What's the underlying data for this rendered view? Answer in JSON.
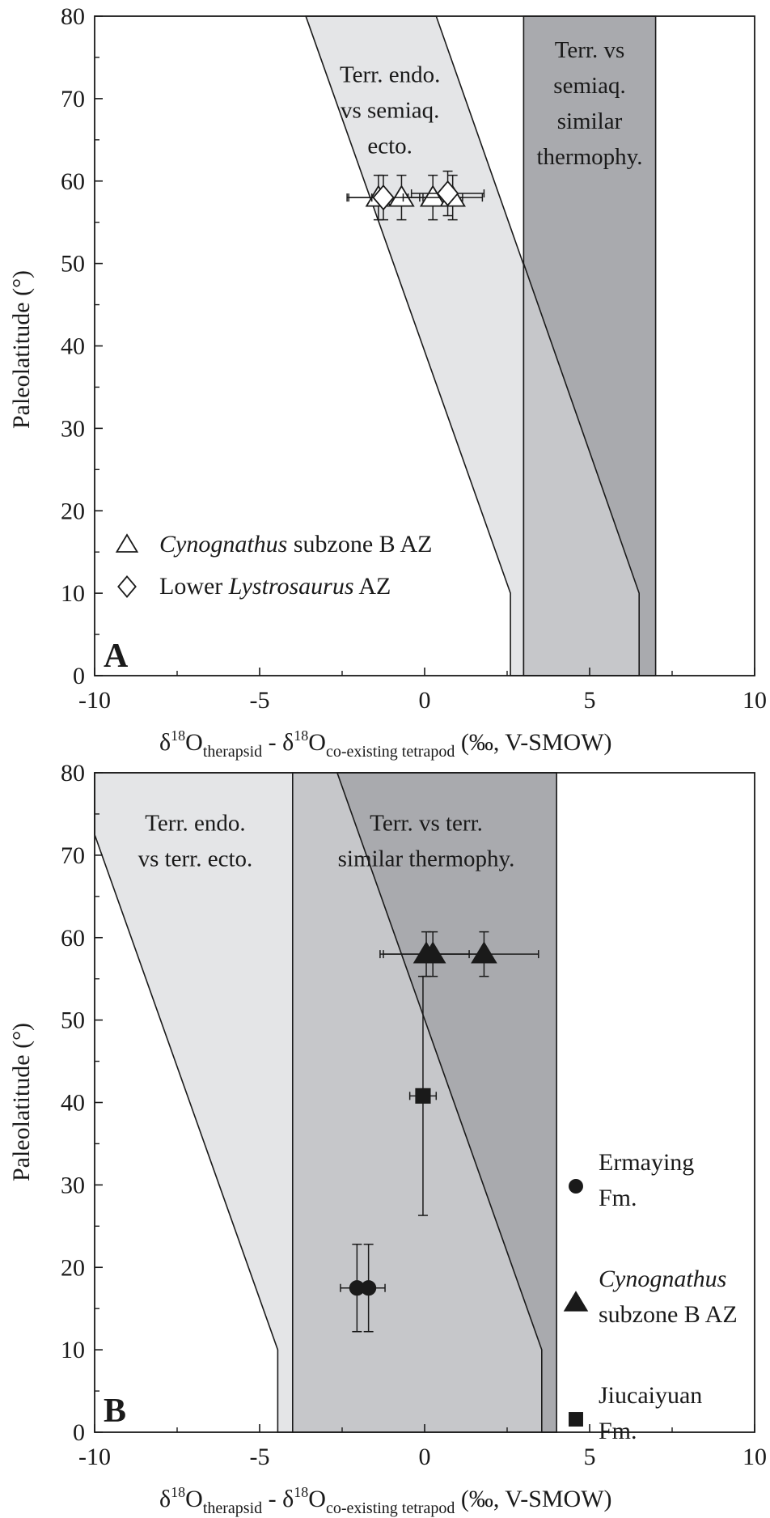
{
  "chart_data": [
    {
      "type": "scatter",
      "panel": "A",
      "xlabel": {
        "a": "δ",
        "b": "18",
        "c": "O",
        "d": "therapsid",
        "e": " - δ",
        "f": "18",
        "g": "O",
        "h": "co-existing tetrapod",
        "i": " (‰, V-SMOW)"
      },
      "ylabel": "Paleolatitude (°)",
      "xlim": [
        -10,
        10
      ],
      "ylim": [
        0,
        80
      ],
      "xticks": [
        -10,
        -5,
        0,
        5,
        10
      ],
      "yticks": [
        0,
        10,
        20,
        30,
        40,
        50,
        60,
        70,
        80
      ],
      "regions": [
        {
          "name": "terr-endo-vs-semiaq-ecto",
          "label_lines": [
            "Terr. endo.",
            "vs semiaq.",
            "ecto."
          ],
          "color": "#e4e5e7",
          "polygon": [
            [
              -3.6,
              80
            ],
            [
              0.35,
              80
            ],
            [
              6.5,
              10
            ],
            [
              6.5,
              0
            ],
            [
              2.6,
              0
            ],
            [
              2.6,
              10
            ]
          ]
        },
        {
          "name": "terr-vs-semiaq-similar",
          "label_lines": [
            "Terr. vs",
            "semiaq.",
            "similar",
            "thermophy."
          ],
          "color": "#a9aaae",
          "polygon": [
            [
              3.0,
              80
            ],
            [
              7.0,
              80
            ],
            [
              7.0,
              0
            ],
            [
              3.0,
              0
            ]
          ]
        },
        {
          "name": "overlap",
          "color": "#c6c7ca",
          "polygon": [
            [
              3.0,
              50.0
            ],
            [
              6.5,
              10
            ],
            [
              6.5,
              0
            ],
            [
              3.0,
              0
            ]
          ]
        }
      ],
      "series": [
        {
          "name": "Cynognathus subzone B AZ",
          "marker": "triangle-open",
          "points": [
            {
              "x": -1.4,
              "y": 58,
              "xerr": 0.9,
              "yerr": 2.7
            },
            {
              "x": -0.7,
              "y": 58,
              "xerr": 0.9,
              "yerr": 2.7
            },
            {
              "x": 0.25,
              "y": 58,
              "xerr": 0.9,
              "yerr": 2.7
            },
            {
              "x": 0.85,
              "y": 58,
              "xerr": 0.9,
              "yerr": 2.7
            }
          ]
        },
        {
          "name": "Lower Lystrosaurus AZ",
          "marker": "diamond-open",
          "points": [
            {
              "x": -1.25,
              "y": 58,
              "xerr": 1.1,
              "yerr": 2.7
            },
            {
              "x": 0.7,
              "y": 58.5,
              "xerr": 1.1,
              "yerr": 2.7
            }
          ]
        }
      ],
      "legend": [
        {
          "marker": "triangle-open",
          "parts": [
            {
              "t": "Cynognathus",
              "i": true
            },
            {
              "t": " subzone B AZ",
              "i": false
            }
          ]
        },
        {
          "marker": "diamond-open",
          "parts": [
            {
              "t": "Lower ",
              "i": false
            },
            {
              "t": "Lystrosaurus",
              "i": true
            },
            {
              "t": " AZ",
              "i": false
            }
          ]
        }
      ],
      "legend_position": "bottom-left"
    },
    {
      "type": "scatter",
      "panel": "B",
      "xlabel": {
        "a": "δ",
        "b": "18",
        "c": "O",
        "d": "therapsid",
        "e": " - δ",
        "f": "18",
        "g": "O",
        "h": "co-existing tetrapod",
        "i": " (‰, V-SMOW)"
      },
      "ylabel": "Paleolatitude (°)",
      "xlim": [
        -10,
        10
      ],
      "ylim": [
        0,
        80
      ],
      "xticks": [
        -10,
        -5,
        0,
        5,
        10
      ],
      "yticks": [
        0,
        10,
        20,
        30,
        40,
        50,
        60,
        70,
        80
      ],
      "regions": [
        {
          "name": "terr-endo-vs-terr-ecto",
          "label_lines": [
            "Terr. endo.",
            "vs terr. ecto."
          ],
          "color": "#e4e5e7",
          "polygon": [
            [
              -10,
              80
            ],
            [
              -4.0,
              80
            ],
            [
              -4.0,
              0
            ],
            [
              -4.45,
              0
            ],
            [
              -4.45,
              10
            ],
            [
              -10,
              72.5
            ]
          ]
        },
        {
          "name": "terr-vs-terr-similar",
          "label_lines": [
            "Terr. vs terr.",
            "similar thermophy."
          ],
          "color": "#c6c7ca",
          "polygon": [
            [
              -4.0,
              80
            ],
            [
              4.0,
              80
            ],
            [
              4.0,
              0
            ],
            [
              -4.0,
              0
            ]
          ]
        },
        {
          "name": "darker-band",
          "color": "#a9aaae",
          "polygon": [
            [
              -2.65,
              80
            ],
            [
              4.0,
              80
            ],
            [
              4.0,
              0
            ],
            [
              3.55,
              0
            ],
            [
              3.55,
              10
            ]
          ]
        }
      ],
      "series": [
        {
          "name": "Ermaying Fm.",
          "marker": "circle-filled",
          "points": [
            {
              "x": -2.05,
              "y": 17.5,
              "xerr": 0.5,
              "yerr": 5.3
            },
            {
              "x": -1.7,
              "y": 17.5,
              "xerr": 0.5,
              "yerr": 5.3
            }
          ]
        },
        {
          "name": "Cynognathus subzone B AZ",
          "marker": "triangle-filled",
          "points": [
            {
              "x": 0.05,
              "y": 58,
              "xerr": 1.3,
              "yerr": 2.7
            },
            {
              "x": 0.25,
              "y": 58,
              "xerr": 1.6,
              "yerr": 2.7
            },
            {
              "x": 1.8,
              "y": 58,
              "xerr": 1.65,
              "yerr": 2.7
            }
          ]
        },
        {
          "name": "Jiucaiyuan Fm.",
          "marker": "square-filled",
          "points": [
            {
              "x": -0.05,
              "y": 40.8,
              "xerr": 0.4,
              "yerr": 14.5
            }
          ]
        }
      ],
      "legend": [
        {
          "marker": "circle-filled",
          "lines": [
            [
              {
                "t": "Ermaying",
                "i": false
              }
            ],
            [
              {
                "t": "Fm.",
                "i": false
              }
            ]
          ]
        },
        {
          "marker": "triangle-filled",
          "lines": [
            [
              {
                "t": "Cynognathus",
                "i": true
              }
            ],
            [
              {
                "t": "subzone B AZ",
                "i": false
              }
            ]
          ]
        },
        {
          "marker": "square-filled",
          "lines": [
            [
              {
                "t": "Jiucaiyuan",
                "i": false
              }
            ],
            [
              {
                "t": "Fm.",
                "i": false
              }
            ]
          ]
        }
      ],
      "legend_position": "right"
    }
  ]
}
